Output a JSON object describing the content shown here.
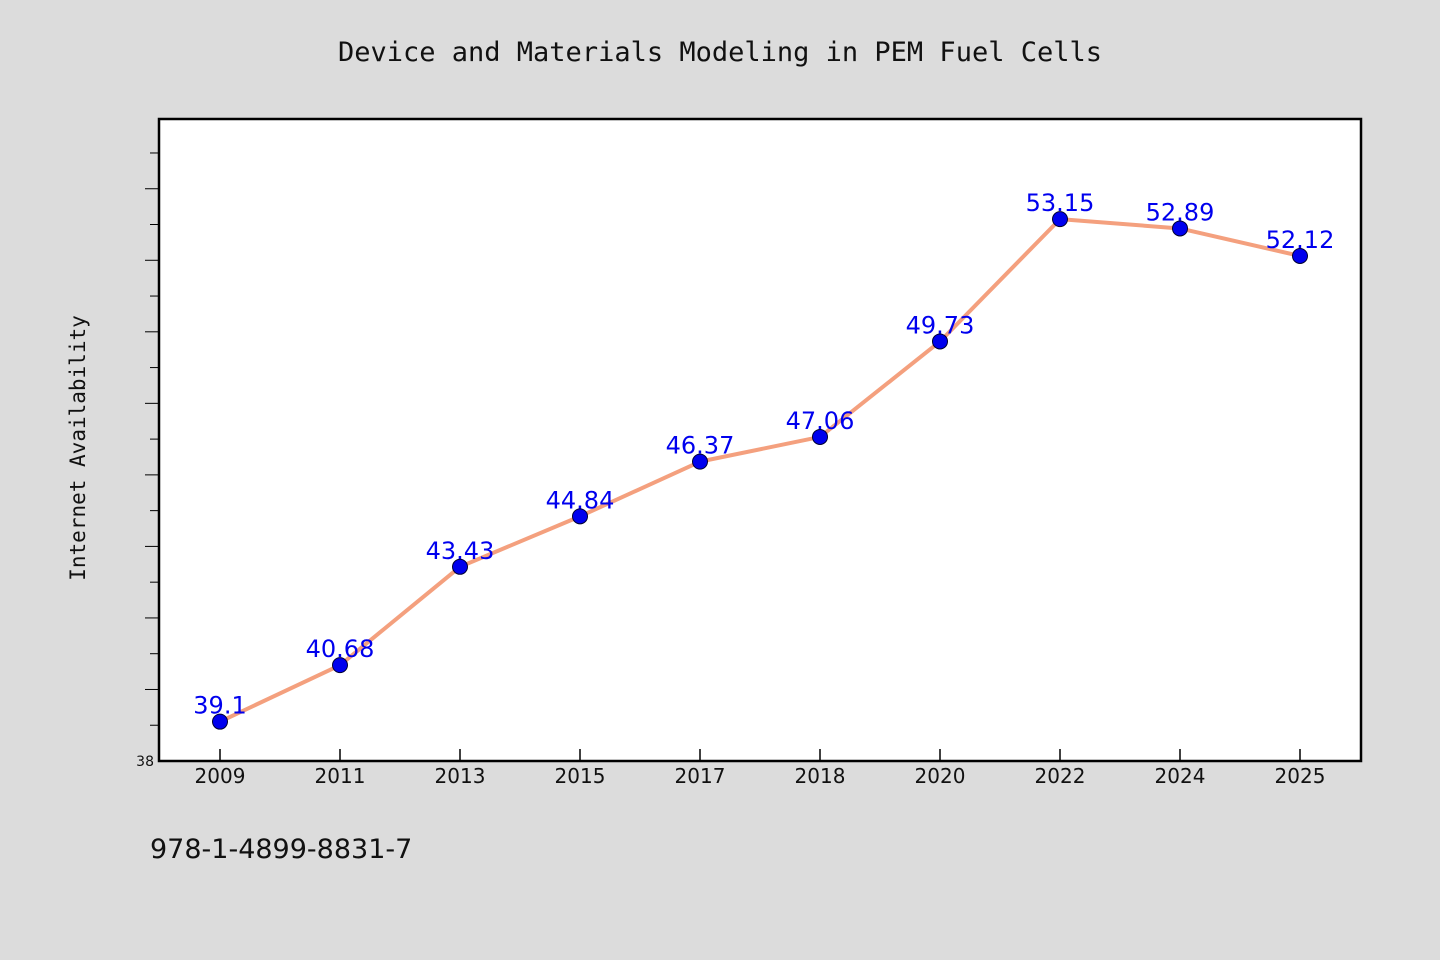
{
  "chart_data": {
    "type": "line",
    "title": "Device and Materials Modeling in PEM Fuel Cells",
    "xlabel": "",
    "ylabel": "Internet Availability",
    "categories": [
      "2009",
      "2011",
      "2013",
      "2015",
      "2017",
      "2018",
      "2020",
      "2022",
      "2024",
      "2025"
    ],
    "series": [
      {
        "values": [
          39.1,
          40.68,
          43.43,
          44.84,
          46.37,
          47.06,
          49.73,
          53.15,
          52.89,
          52.12
        ]
      }
    ],
    "data_labels": [
      "39.1",
      "40.68",
      "43.43",
      "44.84",
      "46.37",
      "47.06",
      "49.73",
      "53.15",
      "52.89",
      "52.12"
    ],
    "yticks": [
      {
        "value": 38,
        "label": "38"
      }
    ],
    "ylim": [
      38,
      55.95
    ],
    "grid": false,
    "legend": "none",
    "colors": {
      "line": "#f4a07e",
      "marker": "#0000ee",
      "data_label": "#0000ee",
      "plot_background": "#ffffff",
      "figure_background": "#dcdcdc"
    }
  },
  "footer": {
    "isbn": "978-1-4899-8831-7"
  }
}
